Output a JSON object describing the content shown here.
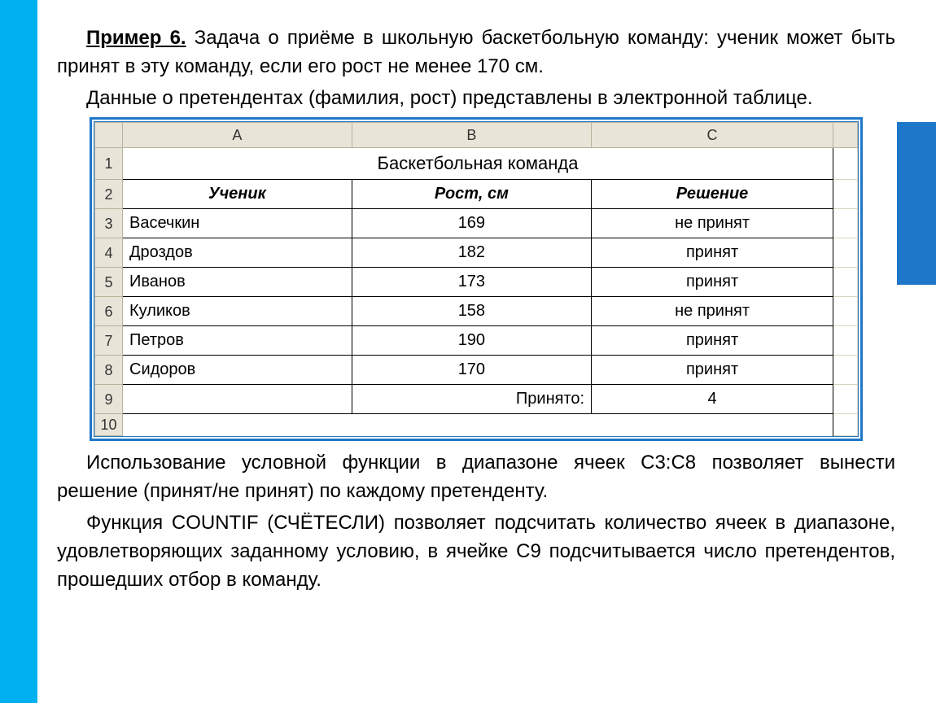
{
  "text": {
    "ex_label": "Пример 6.",
    "p1": " Задача о приёме в школьную баскетбольную команду: ученик может быть принят в эту команду, если его рост не менее 170 см.",
    "p2": "Данные о претендентах (фамилия, рост) представлены в электронной таблице.",
    "p3": "Использование условной функции в диапазоне ячеек C3:C8 позволяет вынести решение (принят/не принят) по каждому претенденту.",
    "p4": "Функция COUNTIF (СЧЁТЕСЛИ) позволяет подсчитать количество ячеек в диапазоне, удовлетворяющих заданному условию, в ячейке C9 подсчитывается число претендентов, прошедших отбор в команду."
  },
  "sheet": {
    "background_header": "#e8e4d8",
    "border_color": "#1f77c9",
    "col_letters": [
      "A",
      "B",
      "C"
    ],
    "title": "Баскетбольная команда",
    "headers": [
      "Ученик",
      "Рост, см",
      "Решение"
    ],
    "rows": [
      {
        "n": "3",
        "a": "Васечкин",
        "b": "169",
        "c": "не принят"
      },
      {
        "n": "4",
        "a": "Дроздов",
        "b": "182",
        "c": "принят"
      },
      {
        "n": "5",
        "a": "Иванов",
        "b": "173",
        "c": "принят"
      },
      {
        "n": "6",
        "a": "Куликов",
        "b": "158",
        "c": "не принят"
      },
      {
        "n": "7",
        "a": "Петров",
        "b": "190",
        "c": "принят"
      },
      {
        "n": "8",
        "a": "Сидоров",
        "b": "170",
        "c": "принят"
      }
    ],
    "summary": {
      "n": "9",
      "b_label": "Принято:",
      "c_value": "4"
    },
    "lastrow": "10",
    "col_widths": {
      "A": "33%",
      "B": "30%",
      "C": "33%"
    }
  },
  "colors": {
    "stripe": "#00b0f0",
    "right_block": "#1f77c9",
    "text": "#000000"
  }
}
